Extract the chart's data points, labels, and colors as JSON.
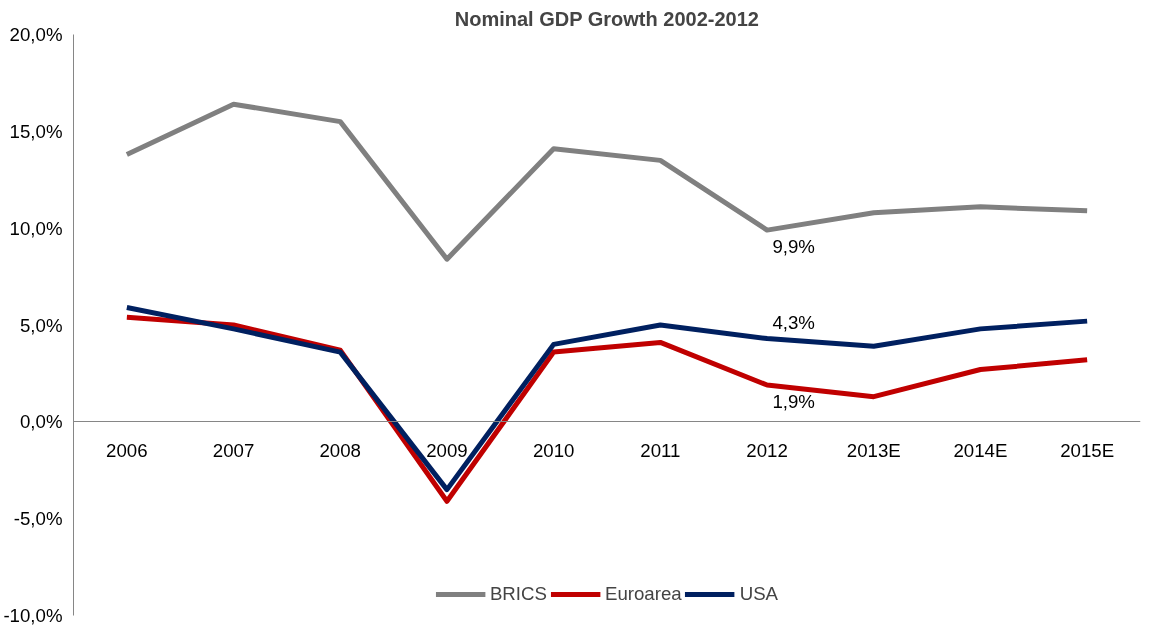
{
  "chart_data": {
    "type": "line",
    "title": "Nominal GDP Growth 2002-2012",
    "categories": [
      "2006",
      "2007",
      "2008",
      "2009",
      "2010",
      "2011",
      "2012",
      "2013E",
      "2014E",
      "2015E"
    ],
    "series": [
      {
        "name": "BRICS",
        "color": "#808080",
        "values": [
          13.8,
          16.4,
          15.5,
          8.4,
          14.1,
          13.5,
          9.9,
          10.8,
          11.1,
          10.9
        ],
        "value_labels": [
          null,
          null,
          null,
          null,
          null,
          null,
          "9,9%",
          null,
          null,
          null
        ]
      },
      {
        "name": "Euroarea",
        "color": "#c00000",
        "values": [
          5.4,
          5.0,
          3.7,
          -4.1,
          3.6,
          4.1,
          1.9,
          1.3,
          2.7,
          3.2
        ],
        "value_labels": [
          null,
          null,
          null,
          null,
          null,
          null,
          "1,9%",
          null,
          null,
          null
        ]
      },
      {
        "name": "USA",
        "color": "#002060",
        "values": [
          5.9,
          4.8,
          3.6,
          -3.5,
          4.0,
          5.0,
          4.3,
          3.9,
          4.8,
          5.2
        ],
        "value_labels": [
          null,
          null,
          null,
          null,
          null,
          null,
          "4,3%",
          null,
          null,
          null
        ]
      }
    ],
    "ylim": [
      -10,
      20
    ],
    "yticks": [
      {
        "value": -10,
        "label": "-10,0%"
      },
      {
        "value": -5,
        "label": "-5,0%"
      },
      {
        "value": 0,
        "label": "0,0%"
      },
      {
        "value": 5,
        "label": "5,0%"
      },
      {
        "value": 10,
        "label": "10,0%"
      },
      {
        "value": 15,
        "label": "15,0%"
      },
      {
        "value": 20,
        "label": "20,0%"
      }
    ],
    "grid": false,
    "legend": "bottom",
    "marker": "none",
    "line_style": "solid"
  }
}
